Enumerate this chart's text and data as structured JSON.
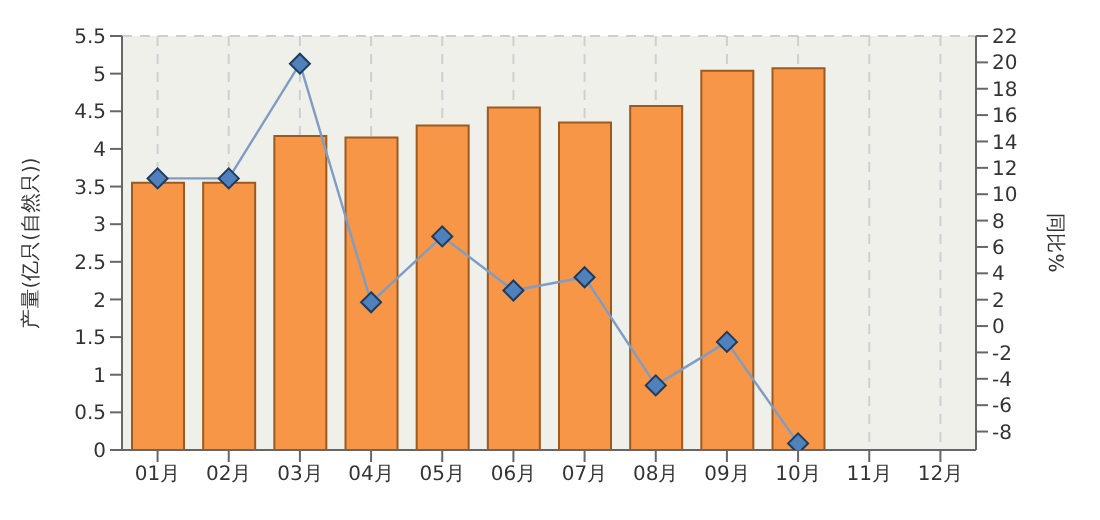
{
  "chart_data": {
    "type": "bar",
    "ylabel": "产量(亿只(自然只))",
    "y2label": "同比%",
    "categories": [
      "01月",
      "02月",
      "03月",
      "04月",
      "05月",
      "06月",
      "07月",
      "08月",
      "09月",
      "10月",
      "11月",
      "12月"
    ],
    "series": [
      {
        "color": "#f79646",
        "values": [
          3.55,
          3.55,
          4.17,
          4.15,
          4.31,
          4.55,
          4.35,
          4.57,
          5.04,
          5.07,
          null,
          null
        ]
      },
      {
        "type": "line",
        "axis": "y2",
        "color": "#7f9cc4",
        "values": [
          11.2,
          11.2,
          19.9,
          1.8,
          6.8,
          2.7,
          3.7,
          -4.5,
          -1.2,
          -8.9,
          null,
          null
        ]
      }
    ],
    "ylim": [
      0,
      5.5
    ],
    "yticks": [
      0,
      0.5,
      1,
      1.5,
      2,
      2.5,
      3,
      3.5,
      4,
      4.5,
      5,
      5.5
    ],
    "y2lim": [
      -9.4,
      22
    ],
    "y2ticks": [
      -8,
      -6,
      -4,
      -2,
      0,
      2,
      4,
      6,
      8,
      10,
      12,
      14,
      16,
      18,
      20,
      22
    ],
    "grid": true,
    "marker": "diamond",
    "line_style": "solid"
  }
}
